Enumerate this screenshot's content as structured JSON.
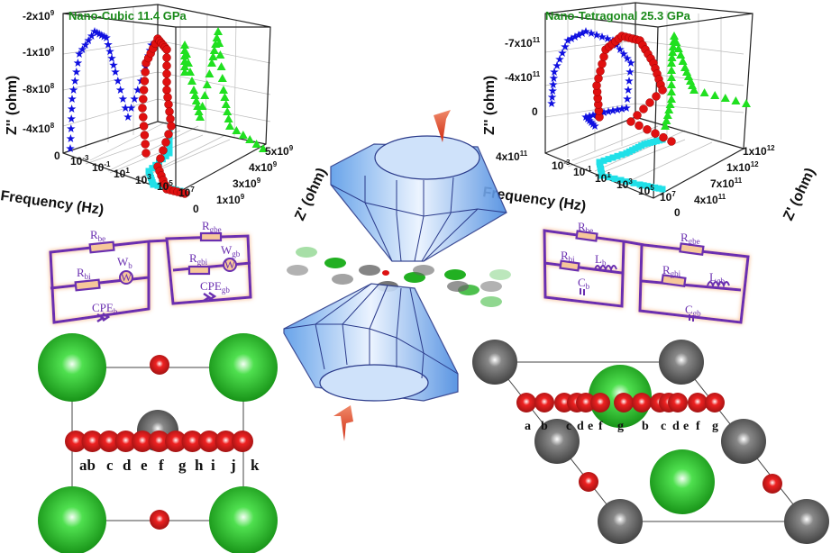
{
  "plots": [
    {
      "title": "Nano-Cubic  11.4 GPa",
      "z2_label": "Z'' (ohm)",
      "freq_label": "Frequency (Hz)",
      "z1_label": "Z' (ohm)",
      "z2_ticks": [
        {
          "b": "-2x10",
          "e": "9"
        },
        {
          "b": "-1x10",
          "e": "9"
        },
        {
          "b": "-8x10",
          "e": "8"
        },
        {
          "b": "-4x10",
          "e": "8"
        },
        {
          "b": "0",
          "e": ""
        }
      ],
      "freq_ticks": [
        {
          "b": "10",
          "e": "-3"
        },
        {
          "b": "10",
          "e": "-1"
        },
        {
          "b": "10",
          "e": "1"
        },
        {
          "b": "10",
          "e": "3"
        },
        {
          "b": "10",
          "e": "5"
        },
        {
          "b": "10",
          "e": "7"
        }
      ],
      "z1_ticks": [
        {
          "b": "0",
          "e": ""
        },
        {
          "b": "1x10",
          "e": "9"
        },
        {
          "b": "3x10",
          "e": "9"
        },
        {
          "b": "4x10",
          "e": "9"
        },
        {
          "b": "5x10",
          "e": "9"
        }
      ]
    },
    {
      "title": "Nano-Tetragonal  25.3 GPa",
      "z2_label": "Z'' (ohm)",
      "freq_label": "Frequency (Hz)",
      "z1_label": "Z' (ohm)",
      "z2_ticks": [
        {
          "b": "-7x10",
          "e": "11"
        },
        {
          "b": "-4x10",
          "e": "11"
        },
        {
          "b": "0",
          "e": ""
        },
        {
          "b": "4x10",
          "e": "11"
        }
      ],
      "freq_ticks": [
        {
          "b": "10",
          "e": "-3"
        },
        {
          "b": "10",
          "e": "-1"
        },
        {
          "b": "10",
          "e": "1"
        },
        {
          "b": "10",
          "e": "3"
        },
        {
          "b": "10",
          "e": "5"
        },
        {
          "b": "10",
          "e": "7"
        }
      ],
      "z1_ticks": [
        {
          "b": "0",
          "e": ""
        },
        {
          "b": "4x10",
          "e": "11"
        },
        {
          "b": "7x10",
          "e": "11"
        },
        {
          "b": "1x10",
          "e": "12"
        },
        {
          "b": "1x10",
          "e": "12"
        }
      ]
    }
  ],
  "series_colors": {
    "star": "#1010e0",
    "sphere": "#e01010",
    "triangle": "#20e020",
    "square": "#20e0e8"
  },
  "circuit_left": {
    "rbe": {
      "b": "R",
      "s": "be"
    },
    "rbi": {
      "b": "R",
      "s": "bi"
    },
    "wb": {
      "b": "W",
      "s": "b"
    },
    "cpeb": {
      "b": "CPE",
      "s": "b"
    },
    "rgbe": {
      "b": "R",
      "s": "gbe"
    },
    "rgbi": {
      "b": "R",
      "s": "gbi"
    },
    "wgb": {
      "b": "W",
      "s": "gb"
    },
    "cpegb": {
      "b": "CPE",
      "s": "gb"
    },
    "w_symbol": "W"
  },
  "circuit_right": {
    "rbe": {
      "b": "R",
      "s": "be"
    },
    "rbi": {
      "b": "R",
      "s": "bi"
    },
    "lb": {
      "b": "L",
      "s": "b"
    },
    "cb": {
      "b": "C",
      "s": "b"
    },
    "rgbe": {
      "b": "R",
      "s": "gbe"
    },
    "rgbi": {
      "b": "R",
      "s": "gbi"
    },
    "lgb": {
      "b": "L",
      "s": "gb"
    },
    "cgb": {
      "b": "C",
      "s": "gb"
    }
  },
  "cubic_site_labels": [
    "ab",
    "c",
    "d",
    "e",
    "f",
    "g",
    "h",
    "i",
    "j",
    "k"
  ],
  "tetragonal_site_labels": [
    "a",
    "b",
    "c",
    "d",
    "e",
    "f",
    "g",
    "b",
    "c",
    "d",
    "e",
    "f",
    "g"
  ],
  "atom_colors": {
    "green": "#22b022",
    "grey": "#666666",
    "red": "#dd1111"
  }
}
